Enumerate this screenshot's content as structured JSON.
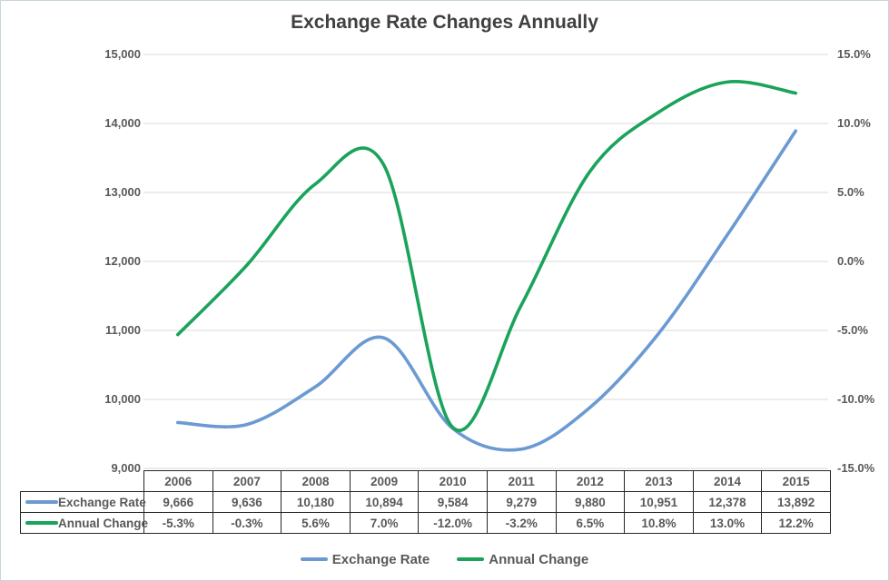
{
  "chart_data": {
    "type": "line",
    "title": "Exchange Rate Changes Annually",
    "smooth": true,
    "grid": true,
    "legend_position": "bottom",
    "has_data_table": true,
    "categories": [
      "2006",
      "2007",
      "2008",
      "2009",
      "2010",
      "2011",
      "2012",
      "2013",
      "2014",
      "2015"
    ],
    "series": [
      {
        "name": "Exchange Rate",
        "axis": "left",
        "color": "#6B9AD2",
        "values": [
          9666,
          9636,
          10180,
          10894,
          9584,
          9279,
          9880,
          10951,
          12378,
          13892
        ],
        "labels": [
          "9,666",
          "9,636",
          "10,180",
          "10,894",
          "9,584",
          "9,279",
          "9,880",
          "10,951",
          "12,378",
          "13,892"
        ]
      },
      {
        "name": "Annual Change",
        "axis": "right",
        "color": "#1AA35A",
        "values": [
          -5.3,
          -0.3,
          5.6,
          7.0,
          -12.0,
          -3.2,
          6.5,
          10.8,
          13.0,
          12.2
        ],
        "labels": [
          "-5.3%",
          "-0.3%",
          "5.6%",
          "7.0%",
          "-12.0%",
          "-3.2%",
          "6.5%",
          "10.8%",
          "13.0%",
          "12.2%"
        ]
      }
    ],
    "left_axis": {
      "min": 9000,
      "max": 15000,
      "tick_labels_top_to_bottom": [
        "15,000",
        "14,000",
        "13,000",
        "12,000",
        "11,000",
        "10,000",
        "9,000"
      ]
    },
    "right_axis": {
      "min": -15,
      "max": 15,
      "tick_labels_top_to_bottom": [
        "15.0%",
        "10.0%",
        "5.0%",
        "0.0%",
        "-5.0%",
        "-10.0%",
        "-15.0%"
      ]
    },
    "colors": {
      "grid": "#d9d9d9",
      "title_text": "#404040",
      "axis_text": "#595959",
      "table_border": "#262626"
    }
  },
  "legend": {
    "items": [
      "Exchange Rate",
      "Annual Change"
    ]
  }
}
